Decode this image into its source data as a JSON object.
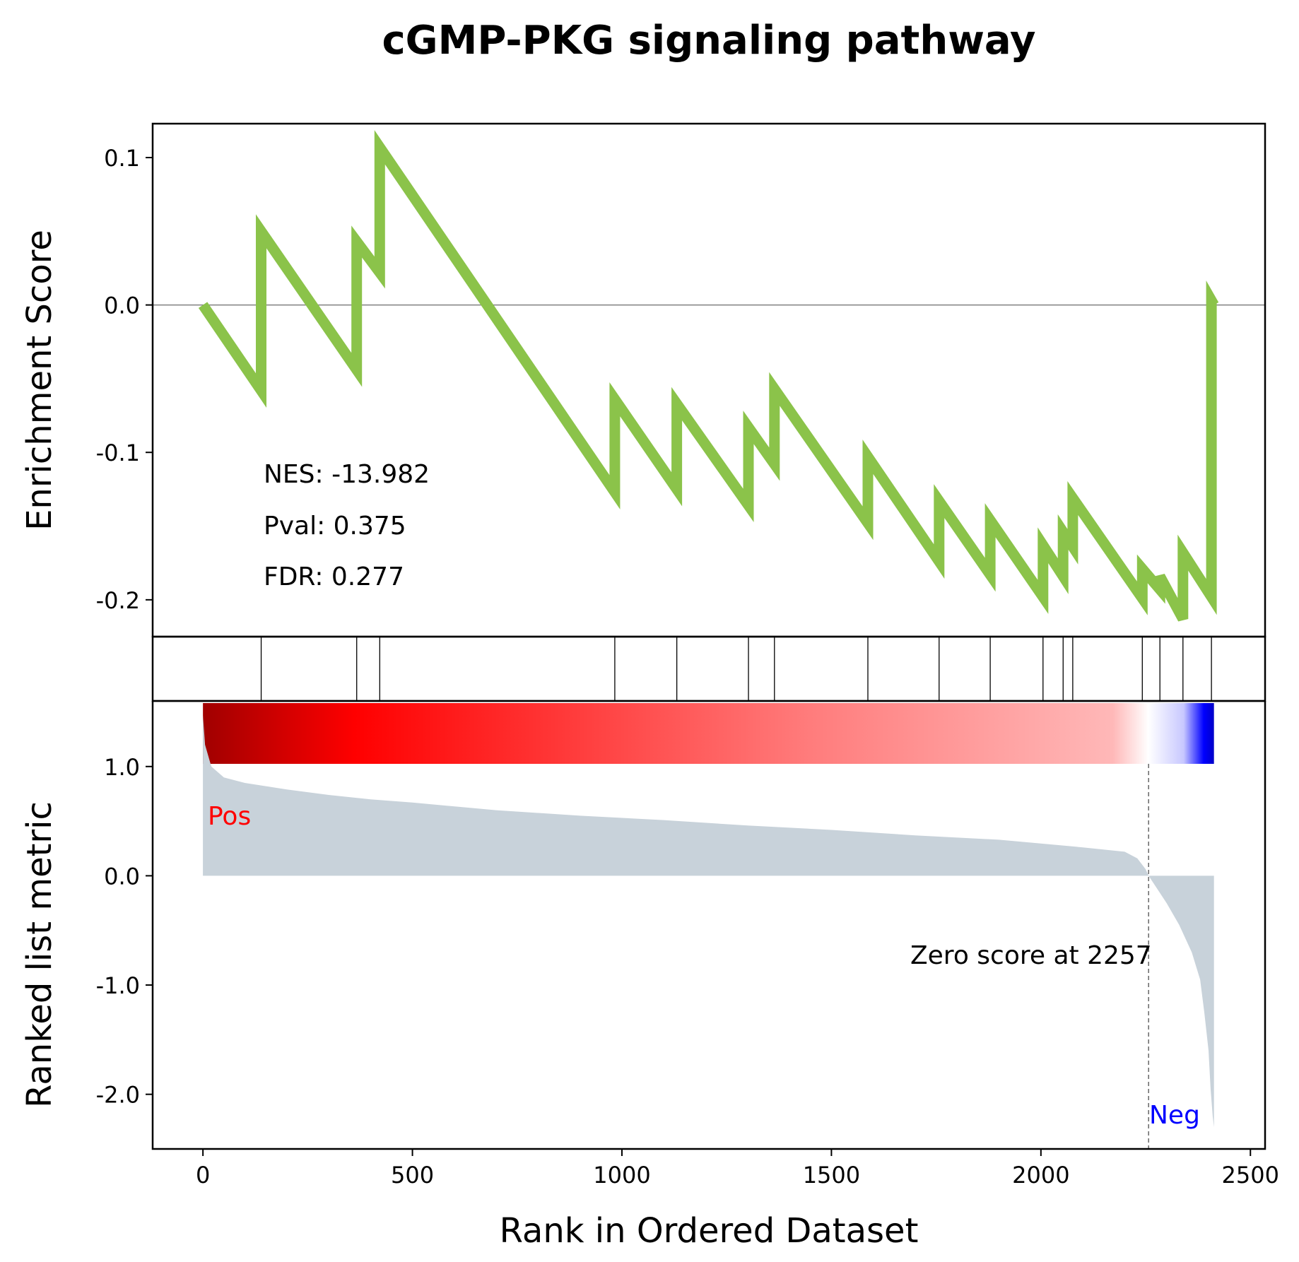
{
  "chart_data": {
    "type": "line",
    "title": "cGMP-PKG signaling pathway",
    "xlabel": "Rank in Ordered Dataset",
    "es_panel": {
      "ylabel": "Enrichment Score",
      "ylim": [
        -0.225,
        0.123
      ],
      "yticks": [
        0.1,
        0.0,
        -0.1,
        -0.2
      ],
      "ytick_labels": [
        "0.1",
        "0.0",
        "-0.1",
        "-0.2"
      ],
      "line_color": "#8bc34a",
      "x": [
        0,
        139,
        139,
        367,
        367,
        422,
        422,
        983,
        983,
        1131,
        1131,
        1302,
        1302,
        1364,
        1364,
        1587,
        1587,
        1757,
        1757,
        1879,
        1879,
        2005,
        2005,
        2053,
        2053,
        2076,
        2076,
        2242,
        2242,
        2284,
        2284,
        2339,
        2339,
        2407,
        2407,
        2413
      ],
      "y": [
        0.0,
        -0.058,
        0.05,
        -0.044,
        0.043,
        0.022,
        0.107,
        -0.127,
        -0.064,
        -0.125,
        -0.067,
        -0.136,
        -0.083,
        -0.108,
        -0.057,
        -0.148,
        -0.103,
        -0.174,
        -0.133,
        -0.183,
        -0.146,
        -0.198,
        -0.163,
        -0.184,
        -0.154,
        -0.164,
        -0.131,
        -0.199,
        -0.179,
        -0.193,
        -0.184,
        -0.213,
        -0.168,
        -0.198,
        0.003,
        0.0
      ],
      "annotations": {
        "nes": "NES: -13.982",
        "pval": "Pval: 0.375",
        "fdr": "FDR: 0.277"
      }
    },
    "hits": [
      139,
      367,
      422,
      983,
      1131,
      1302,
      1364,
      1587,
      1757,
      1879,
      2005,
      2053,
      2076,
      2242,
      2284,
      2339,
      2407
    ],
    "rank_panel": {
      "ylabel": "Ranked list metric",
      "ylim": [
        -2.5,
        1.6
      ],
      "yticks": [
        1.0,
        0.0,
        -1.0,
        -2.0
      ],
      "ytick_labels": [
        "1.0",
        "0.0",
        "-1.0",
        "-2.0"
      ],
      "fill_color": "#c8d2da",
      "x": [
        0,
        5,
        20,
        50,
        100,
        150,
        200,
        300,
        400,
        500,
        700,
        900,
        1100,
        1300,
        1500,
        1700,
        1900,
        2100,
        2200,
        2230,
        2250,
        2257,
        2300,
        2330,
        2360,
        2380,
        2390,
        2400,
        2405,
        2410,
        2413
      ],
      "y": [
        1.47,
        1.2,
        1.0,
        0.9,
        0.85,
        0.82,
        0.79,
        0.74,
        0.7,
        0.67,
        0.6,
        0.55,
        0.51,
        0.46,
        0.42,
        0.37,
        0.33,
        0.26,
        0.22,
        0.16,
        0.06,
        0.0,
        -0.25,
        -0.45,
        -0.7,
        -0.95,
        -1.25,
        -1.6,
        -1.95,
        -2.2,
        -2.3
      ],
      "zero_cross": 2257,
      "zero_label": "Zero score at 2257",
      "pos_label": "Pos",
      "neg_label": "Neg",
      "pos_color": "#ff0000",
      "neg_color": "#0000ff"
    },
    "xlim": [
      -120,
      2535
    ],
    "xticks": [
      0,
      500,
      1000,
      1500,
      2000,
      2500
    ],
    "xtick_labels": [
      "0",
      "500",
      "1000",
      "1500",
      "2000",
      "2500"
    ],
    "colorbar": {
      "stops": [
        {
          "offset": 0.0,
          "color": "#a00000"
        },
        {
          "offset": 0.15,
          "color": "#ff0000"
        },
        {
          "offset": 0.6,
          "color": "#ff7c7c"
        },
        {
          "offset": 0.9,
          "color": "#ffb8b8"
        },
        {
          "offset": 0.935,
          "color": "#ffffff"
        },
        {
          "offset": 0.97,
          "color": "#c8c8ff"
        },
        {
          "offset": 0.99,
          "color": "#0000ff"
        },
        {
          "offset": 1.0,
          "color": "#0000c8"
        }
      ]
    }
  }
}
